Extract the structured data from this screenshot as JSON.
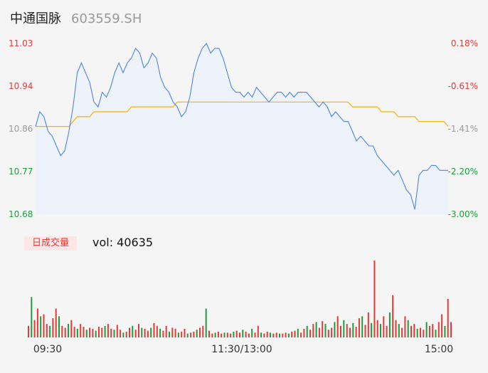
{
  "header": {
    "name": "中通国脉",
    "code": "603559.SH"
  },
  "volume_panel": {
    "tab_label": "日成交量",
    "vol_text": "vol: 40635"
  },
  "colors": {
    "up": "#e53935",
    "down": "#1a9e3a",
    "price_line": "#4a86e8",
    "avg_line": "#f5b400",
    "area": "#eef2fa",
    "neutral": "#999999"
  },
  "chart_data": [
    {
      "type": "line",
      "title": "",
      "price_ticks": [
        "11.03",
        "10.94",
        "10.86",
        "10.77",
        "10.68"
      ],
      "percent_ticks": [
        "0.18%",
        "-0.61%",
        "-1.41%",
        "-2.20%",
        "-3.00%"
      ],
      "x_ticks": [
        "09:30",
        "11:30/13:00",
        "15:00"
      ],
      "ylim": [
        10.68,
        11.03
      ],
      "series": [
        {
          "values": [
            10.86,
            10.89,
            10.88,
            10.85,
            10.84,
            10.82,
            10.8,
            10.81,
            10.85,
            10.9,
            10.97,
            10.99,
            10.97,
            10.95,
            10.91,
            10.9,
            10.93,
            10.92,
            10.94,
            10.97,
            10.99,
            10.97,
            10.99,
            11.0,
            11.02,
            11.01,
            10.98,
            10.99,
            11.01,
            11.0,
            10.96,
            10.94,
            10.93,
            10.91,
            10.9,
            10.88,
            10.89,
            10.92,
            10.97,
            11.0,
            11.02,
            11.03,
            11.01,
            11.02,
            11.02,
            11.0,
            10.97,
            10.94,
            10.93,
            10.93,
            10.92,
            10.93,
            10.92,
            10.94,
            10.93,
            10.92,
            10.91,
            10.92,
            10.93,
            10.93,
            10.92,
            10.93,
            10.92,
            10.93,
            10.93,
            10.93,
            10.92,
            10.91,
            10.9,
            10.91,
            10.9,
            10.88,
            10.89,
            10.88,
            10.87,
            10.87,
            10.85,
            10.83,
            10.84,
            10.83,
            10.82,
            10.82,
            10.8,
            10.79,
            10.78,
            10.77,
            10.76,
            10.77,
            10.75,
            10.73,
            10.72,
            10.69,
            10.76,
            10.77,
            10.77,
            10.78,
            10.78,
            10.77,
            10.77,
            10.77
          ]
        },
        {
          "values": [
            10.86,
            10.86,
            10.86,
            10.86,
            10.86,
            10.86,
            10.86,
            10.86,
            10.86,
            10.87,
            10.88,
            10.88,
            10.88,
            10.88,
            10.89,
            10.89,
            10.89,
            10.89,
            10.89,
            10.89,
            10.89,
            10.89,
            10.89,
            10.9,
            10.9,
            10.9,
            10.9,
            10.9,
            10.9,
            10.9,
            10.9,
            10.9,
            10.9,
            10.9,
            10.91,
            10.91,
            10.91,
            10.91,
            10.91,
            10.91,
            10.91,
            10.91,
            10.91,
            10.91,
            10.91,
            10.91,
            10.91,
            10.91,
            10.91,
            10.91,
            10.91,
            10.91,
            10.91,
            10.91,
            10.91,
            10.91,
            10.91,
            10.91,
            10.91,
            10.91,
            10.91,
            10.91,
            10.91,
            10.91,
            10.91,
            10.91,
            10.91,
            10.91,
            10.91,
            10.91,
            10.91,
            10.91,
            10.91,
            10.91,
            10.91,
            10.91,
            10.9,
            10.9,
            10.9,
            10.9,
            10.9,
            10.9,
            10.9,
            10.89,
            10.89,
            10.89,
            10.89,
            10.88,
            10.88,
            10.88,
            10.88,
            10.88,
            10.87,
            10.87,
            10.87,
            10.87,
            10.87,
            10.87,
            10.87,
            10.86
          ]
        }
      ]
    },
    {
      "type": "bar",
      "title": "",
      "values": [
        12,
        42,
        18,
        30,
        22,
        24,
        14,
        12,
        20,
        30,
        22,
        12,
        10,
        14,
        18,
        11,
        9,
        14,
        11,
        8,
        10,
        9,
        7,
        11,
        10,
        12,
        14,
        9,
        8,
        13,
        8,
        5,
        6,
        10,
        12,
        8,
        14,
        10,
        9,
        7,
        10,
        15,
        12,
        9,
        7,
        12,
        6,
        10,
        9,
        5,
        6,
        9,
        4,
        5,
        6,
        8,
        10,
        12,
        30,
        7,
        4,
        5,
        6,
        4,
        5,
        5,
        4,
        6,
        7,
        5,
        8,
        6,
        4,
        9,
        5,
        12,
        5,
        4,
        6,
        5,
        4,
        5,
        4,
        4,
        5,
        4,
        6,
        7,
        9,
        5,
        9,
        12,
        8,
        14,
        16,
        10,
        17,
        14,
        8,
        10,
        16,
        22,
        12,
        18,
        14,
        10,
        15,
        11,
        20,
        22,
        13,
        26,
        15,
        80,
        18,
        14,
        22,
        12,
        26,
        44,
        18,
        14,
        10,
        22,
        18,
        12,
        14,
        9,
        10,
        8,
        16,
        12,
        14,
        8,
        16,
        24,
        12,
        40,
        16
      ]
    }
  ]
}
